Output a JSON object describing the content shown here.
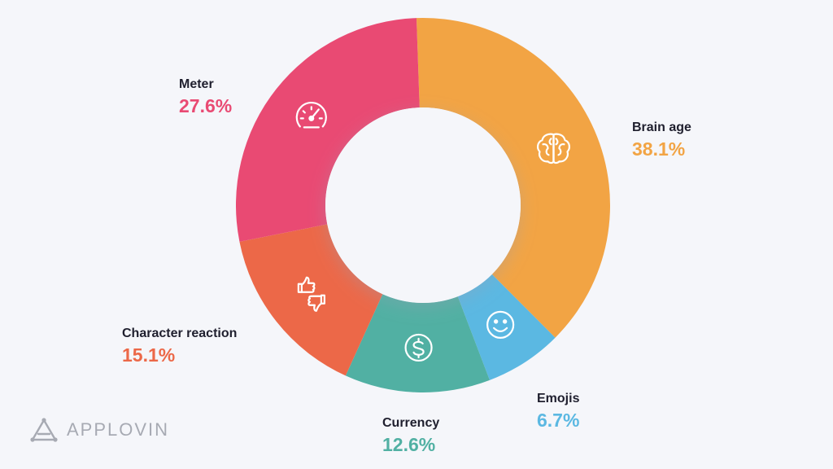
{
  "chart_data": {
    "type": "pie",
    "variant": "donut",
    "slices": [
      {
        "label": "Brain age",
        "value": 38.1,
        "display": "38.1%",
        "color": "#f2a444",
        "icon": "brain-icon"
      },
      {
        "label": "Emojis",
        "value": 6.7,
        "display": "6.7%",
        "color": "#5bb8e2",
        "icon": "smiley-icon"
      },
      {
        "label": "Currency",
        "value": 12.6,
        "display": "12.6%",
        "color": "#51b0a3",
        "icon": "dollar-coin-icon"
      },
      {
        "label": "Character reaction",
        "value": 15.1,
        "display": "15.1%",
        "color": "#ec6848",
        "icon": "thumbs-up-down-icon"
      },
      {
        "label": "Meter",
        "value": 27.6,
        "display": "27.6%",
        "color": "#e94a73",
        "icon": "speedometer-icon"
      }
    ]
  },
  "labels": {
    "brain_age": {
      "name": "Brain age",
      "pct": "38.1%"
    },
    "emojis": {
      "name": "Emojis",
      "pct": "6.7%"
    },
    "currency": {
      "name": "Currency",
      "pct": "12.6%"
    },
    "character_reaction": {
      "name": "Character reaction",
      "pct": "15.1%"
    },
    "meter": {
      "name": "Meter",
      "pct": "27.6%"
    }
  },
  "colors": {
    "brain_age": "#f2a444",
    "emojis": "#5bb8e2",
    "currency": "#51b0a3",
    "character_reaction": "#ec6848",
    "meter": "#e94a73",
    "background": "#f5f6fa"
  },
  "logo": {
    "text": "APPLOVIN",
    "icon": "applovin-triangle-icon"
  }
}
